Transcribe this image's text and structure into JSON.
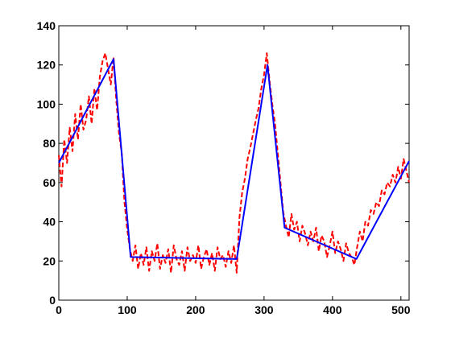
{
  "colors": {
    "background": "#ffffff",
    "axes": "#000000",
    "noisy_series": "#ff0000",
    "fitted_series": "#0000ff"
  },
  "chart_data": {
    "type": "line",
    "title": "",
    "xlabel": "",
    "ylabel": "",
    "xlim": [
      0,
      512
    ],
    "ylim": [
      0,
      140
    ],
    "x_ticks": [
      0,
      100,
      200,
      300,
      400,
      500
    ],
    "y_ticks": [
      0,
      20,
      40,
      60,
      80,
      100,
      120,
      140
    ],
    "grid": false,
    "legend": "none",
    "series": [
      {
        "style": "dashed",
        "color": "#ff0000",
        "x": [
          0,
          4,
          8,
          12,
          16,
          20,
          24,
          28,
          32,
          36,
          40,
          44,
          48,
          52,
          56,
          60,
          64,
          68,
          72,
          76,
          80,
          84,
          88,
          92,
          96,
          100,
          104,
          108,
          112,
          116,
          120,
          124,
          128,
          132,
          136,
          140,
          144,
          148,
          152,
          156,
          160,
          164,
          168,
          172,
          176,
          180,
          184,
          188,
          192,
          196,
          200,
          204,
          208,
          212,
          216,
          220,
          224,
          228,
          232,
          236,
          240,
          244,
          248,
          252,
          256,
          260,
          264,
          268,
          272,
          276,
          280,
          284,
          288,
          292,
          296,
          300,
          304,
          308,
          312,
          316,
          320,
          324,
          328,
          332,
          336,
          340,
          344,
          348,
          352,
          356,
          360,
          364,
          368,
          372,
          376,
          380,
          384,
          388,
          392,
          396,
          400,
          404,
          408,
          412,
          416,
          420,
          424,
          428,
          432,
          436,
          440,
          444,
          448,
          452,
          456,
          460,
          464,
          468,
          472,
          476,
          480,
          484,
          488,
          492,
          496,
          500,
          504,
          508,
          512
        ],
        "values": [
          74,
          58,
          82,
          70,
          88,
          76,
          95,
          82,
          100,
          87,
          92,
          104,
          90,
          108,
          97,
          114,
          122,
          126,
          118,
          110,
          124,
          102,
          85,
          75,
          50,
          36,
          26,
          20,
          28,
          16,
          24,
          18,
          27,
          15,
          25,
          20,
          29,
          16,
          23,
          19,
          26,
          14,
          28,
          21,
          18,
          25,
          15,
          27,
          20,
          23,
          19,
          28,
          16,
          22,
          26,
          18,
          24,
          15,
          27,
          21,
          23,
          17,
          25,
          19,
          28,
          14,
          42,
          55,
          62,
          72,
          78,
          85,
          92,
          98,
          108,
          115,
          126,
          112,
          100,
          90,
          75,
          60,
          45,
          38,
          32,
          44,
          36,
          40,
          30,
          38,
          34,
          28,
          35,
          30,
          37,
          25,
          33,
          30,
          22,
          28,
          35,
          24,
          30,
          26,
          20,
          29,
          24,
          22,
          18,
          27,
          35,
          30,
          40,
          38,
          46,
          44,
          50,
          48,
          56,
          54,
          60,
          58,
          64,
          60,
          68,
          62,
          72,
          66,
          60
        ]
      },
      {
        "style": "solid",
        "color": "#0000ff",
        "x": [
          0,
          80,
          105,
          260,
          305,
          330,
          435,
          512
        ],
        "values": [
          70,
          123,
          22,
          21,
          120,
          37,
          21,
          71
        ]
      }
    ]
  }
}
